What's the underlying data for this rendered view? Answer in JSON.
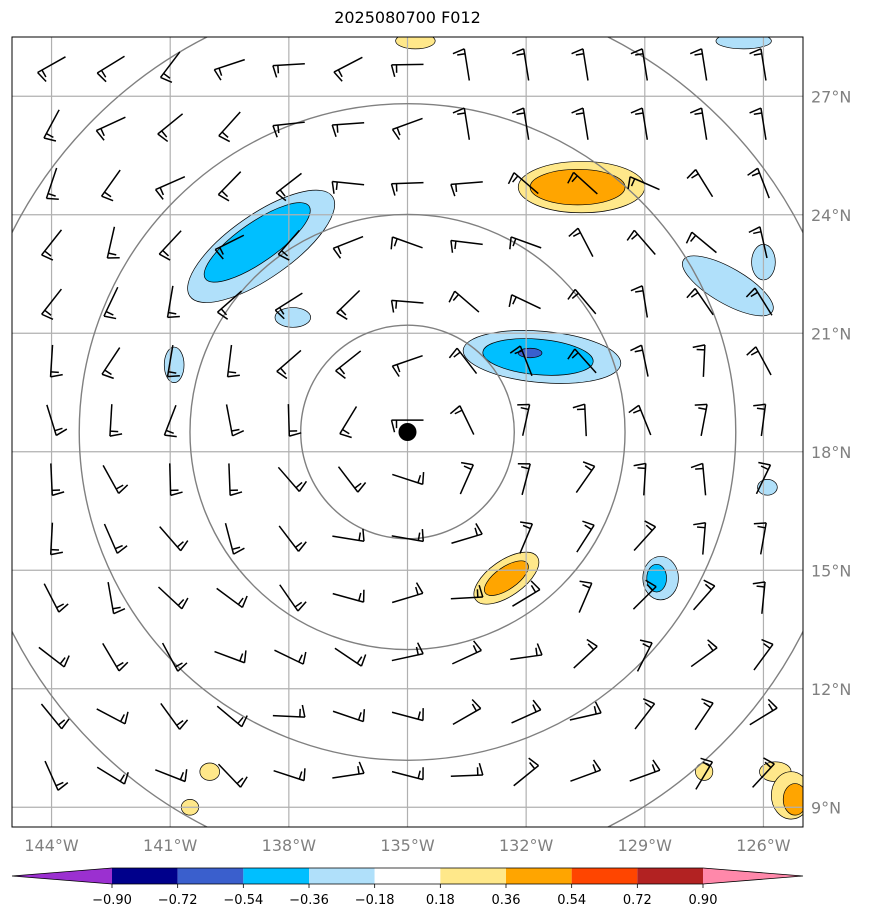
{
  "title": "2025080700 F012",
  "map": {
    "lon_range": [
      -145,
      -125
    ],
    "lat_range": [
      8.5,
      28.5
    ],
    "lon_ticks": [
      -144,
      -141,
      -138,
      -135,
      -132,
      -129,
      -126
    ],
    "lon_tick_labels": [
      "144°W",
      "141°W",
      "138°W",
      "135°W",
      "132°W",
      "129°W",
      "126°W"
    ],
    "lat_ticks": [
      9,
      12,
      15,
      18,
      21,
      24,
      27
    ],
    "lat_tick_labels": [
      "9°N",
      "12°N",
      "15°N",
      "18°N",
      "21°N",
      "24°N",
      "27°N"
    ],
    "center": {
      "lon": -135,
      "lat": 18.5
    },
    "ring_radii_deg": [
      2.7,
      5.5,
      8.3,
      11.2
    ],
    "grid_color": "#b0b0b0",
    "ring_color": "#808080"
  },
  "colorbar": {
    "levels": [
      "−0.90",
      "−0.72",
      "−0.54",
      "−0.36",
      "−0.18",
      "0.18",
      "0.36",
      "0.54",
      "0.72",
      "0.90"
    ],
    "colors": [
      "#9b30d0",
      "#00008b",
      "#3a5fcd",
      "#00bfff",
      "#b0e0fa",
      "#ffffff",
      "#ffe88a",
      "#ffa500",
      "#ff4500",
      "#b22222",
      "#ff88aa"
    ]
  },
  "shaded_features": [
    {
      "level": "light-blue",
      "color": "#b0e0fa",
      "lon": -138.7,
      "lat": 23.2,
      "rx": 2.2,
      "ry": 0.8,
      "rot": -35
    },
    {
      "level": "blue",
      "color": "#00bfff",
      "lon": -138.8,
      "lat": 23.3,
      "rx": 1.6,
      "ry": 0.5,
      "rot": -35
    },
    {
      "level": "light-blue",
      "color": "#b0e0fa",
      "lon": -137.9,
      "lat": 21.4,
      "rx": 0.45,
      "ry": 0.25,
      "rot": 0
    },
    {
      "level": "light-blue",
      "color": "#b0e0fa",
      "lon": -140.9,
      "lat": 20.2,
      "rx": 0.25,
      "ry": 0.45,
      "rot": 0
    },
    {
      "level": "light-blue",
      "color": "#b0e0fa",
      "lon": -131.6,
      "lat": 20.4,
      "rx": 2.0,
      "ry": 0.65,
      "rot": 5
    },
    {
      "level": "blue",
      "color": "#00bfff",
      "lon": -131.7,
      "lat": 20.4,
      "rx": 1.4,
      "ry": 0.45,
      "rot": 5
    },
    {
      "level": "dark-blue",
      "color": "#3a5fcd",
      "lon": -131.9,
      "lat": 20.5,
      "rx": 0.3,
      "ry": 0.12,
      "rot": 0
    },
    {
      "level": "light-yellow",
      "color": "#ffe88a",
      "lon": -130.6,
      "lat": 24.7,
      "rx": 1.6,
      "ry": 0.65,
      "rot": 0
    },
    {
      "level": "orange",
      "color": "#ffa500",
      "lon": -130.7,
      "lat": 24.7,
      "rx": 1.2,
      "ry": 0.45,
      "rot": 0
    },
    {
      "level": "light-yellow",
      "color": "#ffe88a",
      "lon": -132.5,
      "lat": 14.8,
      "rx": 0.95,
      "ry": 0.45,
      "rot": -35
    },
    {
      "level": "orange",
      "color": "#ffa500",
      "lon": -132.5,
      "lat": 14.8,
      "rx": 0.65,
      "ry": 0.28,
      "rot": -35
    },
    {
      "level": "light-blue",
      "color": "#b0e0fa",
      "lon": -128.6,
      "lat": 14.8,
      "rx": 0.45,
      "ry": 0.55,
      "rot": 0
    },
    {
      "level": "blue",
      "color": "#00bfff",
      "lon": -128.7,
      "lat": 14.8,
      "rx": 0.25,
      "ry": 0.35,
      "rot": 0
    },
    {
      "level": "light-blue",
      "color": "#b0e0fa",
      "lon": -126.9,
      "lat": 22.2,
      "rx": 1.3,
      "ry": 0.45,
      "rot": 30
    },
    {
      "level": "light-blue",
      "color": "#b0e0fa",
      "lon": -126.0,
      "lat": 22.8,
      "rx": 0.3,
      "ry": 0.45,
      "rot": 0
    },
    {
      "level": "light-blue",
      "color": "#b0e0fa",
      "lon": -125.9,
      "lat": 17.1,
      "rx": 0.25,
      "ry": 0.2,
      "rot": 0
    },
    {
      "level": "light-yellow",
      "color": "#ffe88a",
      "lon": -134.8,
      "lat": 28.4,
      "rx": 0.5,
      "ry": 0.2,
      "rot": 0
    },
    {
      "level": "light-blue",
      "color": "#b0e0fa",
      "lon": -126.5,
      "lat": 28.4,
      "rx": 0.7,
      "ry": 0.2,
      "rot": 0
    },
    {
      "level": "light-yellow",
      "color": "#ffe88a",
      "lon": -140.0,
      "lat": 9.9,
      "rx": 0.25,
      "ry": 0.22,
      "rot": 0
    },
    {
      "level": "light-yellow",
      "color": "#ffe88a",
      "lon": -140.5,
      "lat": 9.0,
      "rx": 0.22,
      "ry": 0.2,
      "rot": 0
    },
    {
      "level": "light-yellow",
      "color": "#ffe88a",
      "lon": -127.5,
      "lat": 9.9,
      "rx": 0.22,
      "ry": 0.22,
      "rot": 0
    },
    {
      "level": "light-yellow",
      "color": "#ffe88a",
      "lon": -125.7,
      "lat": 9.9,
      "rx": 0.4,
      "ry": 0.25,
      "rot": 0
    },
    {
      "level": "light-yellow",
      "color": "#ffe88a",
      "lon": -125.3,
      "lat": 9.3,
      "rx": 0.5,
      "ry": 0.6,
      "rot": 0
    },
    {
      "level": "orange",
      "color": "#ffa500",
      "lon": -125.2,
      "lat": 9.2,
      "rx": 0.3,
      "ry": 0.4,
      "rot": 0
    }
  ]
}
